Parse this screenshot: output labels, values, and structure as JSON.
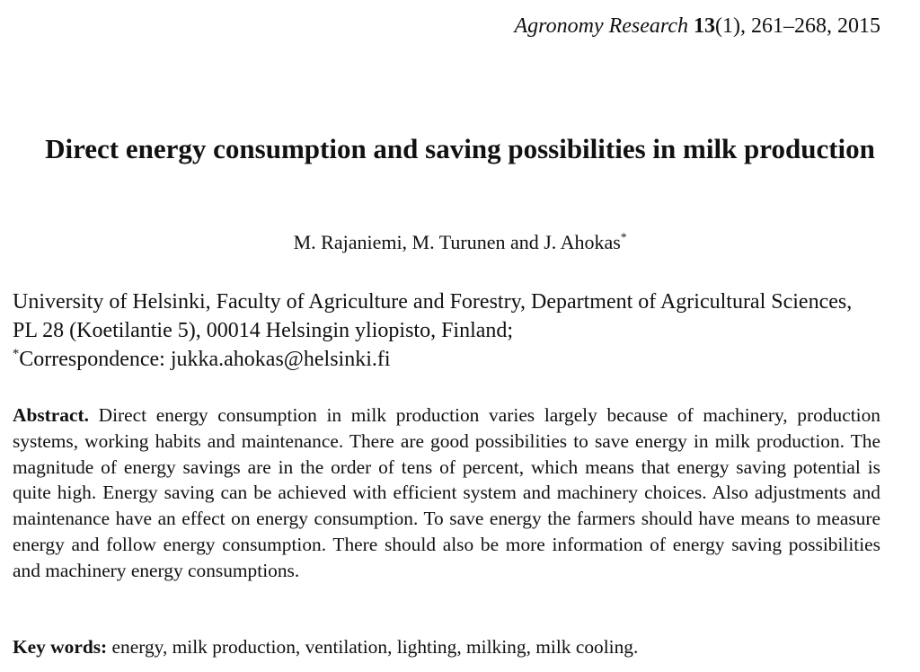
{
  "header": {
    "journal": "Agronomy Research",
    "volume": "13",
    "issue_pages_year": "(1), 261–268, 2015"
  },
  "title": "Direct energy consumption and saving possibilities in milk production",
  "authors": {
    "names": "M. Rajaniemi, M. Turunen and J. Ahokas",
    "mark": "*"
  },
  "affiliation": {
    "text": "University of Helsinki, Faculty of Agriculture and Forestry, Department of Agricultural Sciences, PL 28 (Koetilantie 5), 00014 Helsingin yliopisto, Finland;",
    "mark": "*",
    "correspondence": "Correspondence: jukka.ahokas@helsinki.fi"
  },
  "abstract": {
    "label": "Abstract.",
    "text": "Direct energy consumption in milk production varies largely because of machinery, production systems, working habits and maintenance. There are good possibilities to save energy in milk production. The magnitude of energy savings are in the order of tens of percent, which means that energy saving potential is quite high. Energy saving can be achieved with efficient system and machinery choices. Also adjustments and maintenance have an effect on energy consumption. To save energy the farmers should have means to measure energy and follow energy consumption. There should also be more information of energy saving possibilities and machinery energy consumptions."
  },
  "keywords": {
    "label": "Key words:",
    "text": "energy, milk production, ventilation, lighting, milking, milk cooling."
  }
}
